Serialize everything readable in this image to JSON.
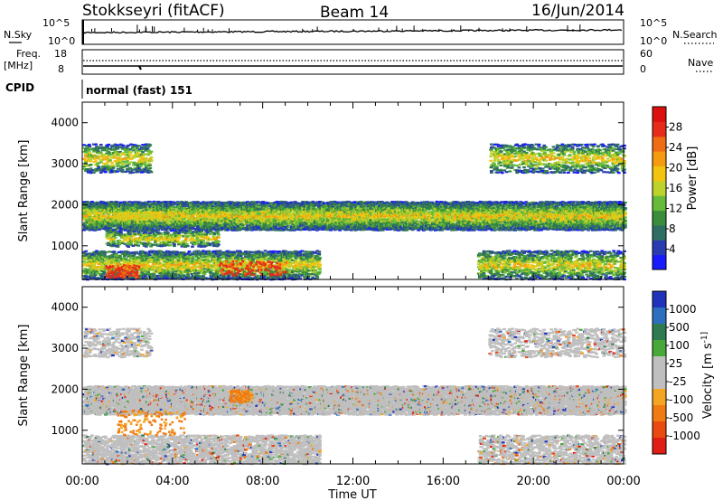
{
  "header": {
    "station": "Stokkseyri (fitACF)",
    "beam": "Beam 14",
    "date": "16/Jun/2014"
  },
  "strips": {
    "nsky_label": "N.Sky",
    "nsky_ticks": [
      "10^5",
      "10^0"
    ],
    "nsearch_label": "N.Search",
    "nsearch_ticks": [
      "10^5",
      "10^0"
    ],
    "freq_label_line1": "Freq.",
    "freq_label_line2": "[MHz]",
    "freq_ticks": [
      "18",
      "8"
    ],
    "nave_label": "Nave",
    "nave_ticks": [
      "60",
      "0"
    ],
    "cpid_label": "CPID",
    "cpid_value": "normal (fast) 151"
  },
  "chart_data": [
    {
      "type": "heatmap",
      "title": "",
      "ylabel": "Slant Range [km]",
      "xlabel": "",
      "ylim": [
        180,
        4500
      ],
      "xlim": [
        "00:00",
        "24:00"
      ],
      "y_ticks": [
        1000,
        2000,
        3000,
        4000
      ],
      "colorbar": {
        "label": "Power [dB]",
        "ticks": [
          "28",
          "24",
          "20",
          "16",
          "12",
          "8",
          "4"
        ],
        "colors": [
          "#1a1aff",
          "#2a3cb0",
          "#2f6f63",
          "#3a8d3a",
          "#66bb3b",
          "#bdd22b",
          "#f2c40f",
          "#f59b0f",
          "#ef6b14",
          "#e62b1a",
          "#dd1010"
        ]
      },
      "bands": [
        {
          "y0": 1400,
          "y1": 2100,
          "t0": 0.0,
          "t1": 24.0,
          "density": 0.8,
          "note": "main scatter band"
        },
        {
          "y0": 2800,
          "y1": 3500,
          "t0": 0.0,
          "t1": 3.0,
          "density": 0.35
        },
        {
          "y0": 2800,
          "y1": 3500,
          "t0": 18.0,
          "t1": 24.0,
          "density": 0.35
        },
        {
          "y0": 1000,
          "y1": 1400,
          "t0": 1.0,
          "t1": 6.0,
          "density": 0.45
        },
        {
          "y0": 200,
          "y1": 900,
          "t0": 0.0,
          "t1": 10.5,
          "density": 0.55
        },
        {
          "y0": 200,
          "y1": 900,
          "t0": 17.5,
          "t1": 24.0,
          "density": 0.45
        }
      ],
      "hotspots": [
        {
          "y0": 250,
          "y1": 550,
          "t0": 1.0,
          "t1": 2.5,
          "level": 28
        },
        {
          "y0": 300,
          "y1": 650,
          "t0": 6.0,
          "t1": 9.0,
          "level": 26
        },
        {
          "y0": 1650,
          "y1": 1850,
          "t0": 1.5,
          "t1": 3.5,
          "level": 20
        }
      ]
    },
    {
      "type": "heatmap",
      "title": "",
      "ylabel": "Slant Range [km]",
      "xlabel": "Time UT",
      "ylim": [
        180,
        4500
      ],
      "xlim": [
        "00:00",
        "24:00"
      ],
      "y_ticks": [
        1000,
        2000,
        3000,
        4000
      ],
      "x_tick_labels": [
        "00:00",
        "04:00",
        "08:00",
        "12:00",
        "16:00",
        "20:00",
        "00:00"
      ],
      "colorbar": {
        "label": "Velocity [m s^-1]",
        "ticks": [
          "1000",
          "500",
          "100",
          "25",
          "-25",
          "-100",
          "-500",
          "-1000"
        ],
        "colors": [
          "#2233bb",
          "#2c6fbf",
          "#2f7b4f",
          "#49a83a",
          "#bfbfbf",
          "#bfbfbf",
          "#f4a623",
          "#f07b12",
          "#ea4a12",
          "#e11e15"
        ]
      },
      "bands": [
        {
          "y0": 1400,
          "y1": 2100,
          "t0": 0.0,
          "t1": 24.0,
          "density": 0.8,
          "note": "ground-scatter grey band"
        },
        {
          "y0": 2800,
          "y1": 3500,
          "t0": 0.0,
          "t1": 3.0,
          "density": 0.3
        },
        {
          "y0": 2800,
          "y1": 3500,
          "t0": 18.0,
          "t1": 24.0,
          "density": 0.3
        },
        {
          "y0": 200,
          "y1": 900,
          "t0": 0.0,
          "t1": 10.5,
          "density": 0.5
        },
        {
          "y0": 200,
          "y1": 900,
          "t0": 17.5,
          "t1": 24.0,
          "density": 0.4
        }
      ],
      "hotspots": [
        {
          "y0": 900,
          "y1": 1500,
          "t0": 1.5,
          "t1": 4.5,
          "level": -400
        },
        {
          "y0": 1700,
          "y1": 2000,
          "t0": 6.5,
          "t1": 7.5,
          "level": -400
        }
      ]
    }
  ]
}
